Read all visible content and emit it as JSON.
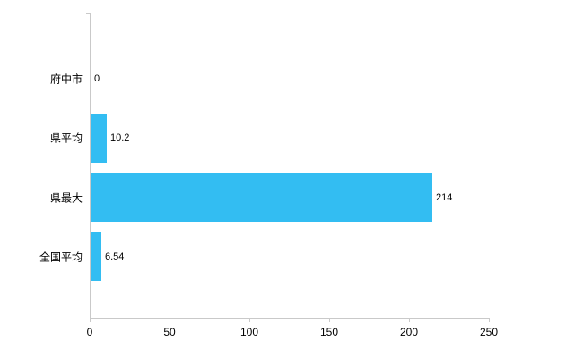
{
  "chart_data": {
    "type": "bar",
    "orientation": "horizontal",
    "title": "",
    "xlabel": "",
    "ylabel": "",
    "categories": [
      "府中市",
      "県平均",
      "県最大",
      "全国平均"
    ],
    "values": [
      0,
      10.2,
      214,
      6.54
    ],
    "value_labels": [
      "0",
      "10.2",
      "214",
      "6.54"
    ],
    "xlim": [
      0,
      250
    ],
    "x_ticks": [
      0,
      50,
      100,
      150,
      200,
      250
    ],
    "grid": false,
    "legend": false,
    "bar_color": "#33bdf2",
    "axis_color": "#c9c9c9",
    "text_color": "#000000",
    "background": "#ffffff"
  }
}
